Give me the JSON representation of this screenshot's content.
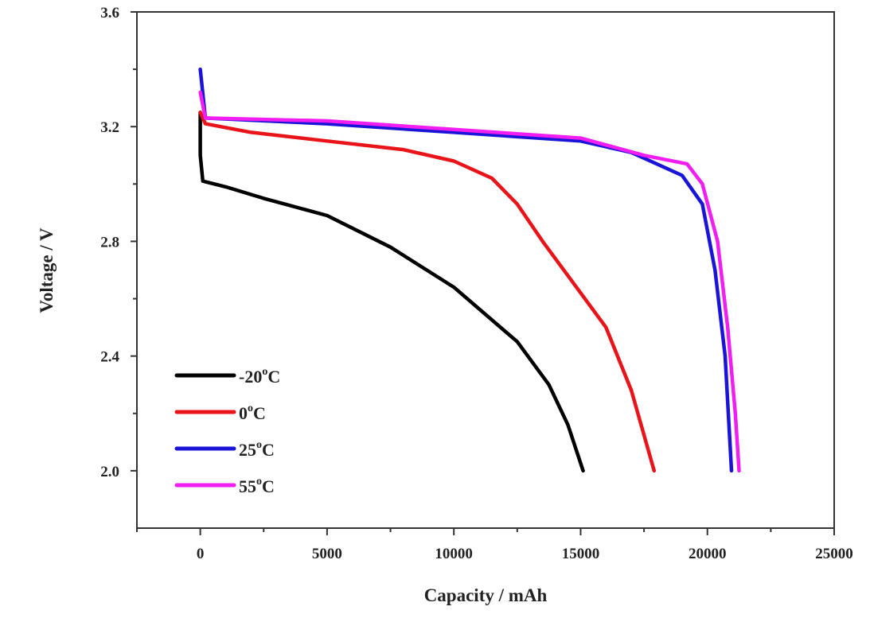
{
  "chart_data": {
    "type": "line",
    "title": "",
    "xlabel": "Capacity / mAh",
    "ylabel": "Voltage / V",
    "xlim": [
      -2500,
      25000
    ],
    "ylim": [
      1.8,
      3.6
    ],
    "xticks": [
      0,
      5000,
      10000,
      15000,
      20000,
      25000
    ],
    "xtick_labels": [
      "0",
      "5000",
      "10000",
      "15000",
      "20000",
      "25000"
    ],
    "yticks": [
      2.0,
      2.4,
      2.8,
      3.2,
      3.6
    ],
    "ytick_labels": [
      "2.0",
      "2.4",
      "2.8",
      "3.2",
      "3.6"
    ],
    "grid": false,
    "legend_placement": "bottom-left",
    "series": [
      {
        "name": "-20",
        "unit": "oC",
        "color": "#000000",
        "x": [
          0,
          0,
          100,
          1000,
          2500,
          5000,
          7500,
          10000,
          12500,
          13750,
          14500,
          15100
        ],
        "y": [
          3.25,
          3.1,
          3.01,
          2.99,
          2.95,
          2.89,
          2.78,
          2.64,
          2.45,
          2.3,
          2.16,
          2.0
        ]
      },
      {
        "name": "0",
        "unit": "oC",
        "color": "#e8141a",
        "x": [
          0,
          200,
          2000,
          5000,
          8000,
          10000,
          11500,
          12500,
          13500,
          15000,
          16000,
          17000,
          17900
        ],
        "y": [
          3.25,
          3.21,
          3.18,
          3.15,
          3.12,
          3.08,
          3.02,
          2.93,
          2.8,
          2.62,
          2.5,
          2.28,
          2.0
        ]
      },
      {
        "name": "25",
        "unit": "oC",
        "color": "#1a14d8",
        "x": [
          0,
          200,
          5000,
          10000,
          15000,
          17000,
          19000,
          19800,
          20300,
          20700,
          20950
        ],
        "y": [
          3.4,
          3.23,
          3.21,
          3.18,
          3.15,
          3.11,
          3.03,
          2.93,
          2.7,
          2.4,
          2.0
        ]
      },
      {
        "name": "55",
        "unit": "oC",
        "color": "#f01ef0",
        "x": [
          0,
          200,
          5000,
          10000,
          15000,
          17500,
          19200,
          19800,
          20400,
          20800,
          21100,
          21250
        ],
        "y": [
          3.32,
          3.23,
          3.22,
          3.19,
          3.16,
          3.1,
          3.07,
          3.0,
          2.8,
          2.5,
          2.2,
          2.0
        ]
      }
    ]
  }
}
